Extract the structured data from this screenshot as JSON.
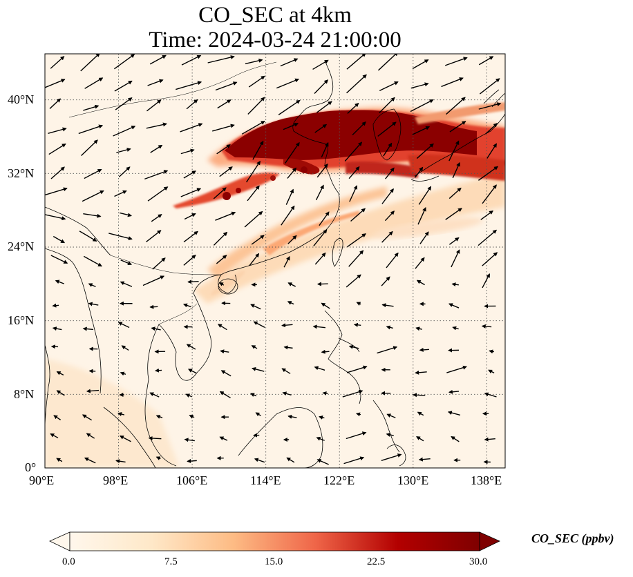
{
  "title_line1": "CO_SEC at 4km",
  "title_line2": "Time: 2024-03-24 21:00:00",
  "map": {
    "lon_range": [
      90,
      140
    ],
    "lat_range": [
      0,
      45
    ],
    "x_ticks": [
      "90°E",
      "98°E",
      "106°E",
      "114°E",
      "122°E",
      "130°E",
      "138°E"
    ],
    "y_ticks": [
      "0°",
      "8°N",
      "16°N",
      "24°N",
      "32°N",
      "40°N"
    ],
    "gridlines": "dotted",
    "wind_vectors": "shown"
  },
  "colorbar": {
    "label": "CO_SEC (ppbv)",
    "ticks": [
      "0.0",
      "7.5",
      "15.0",
      "22.5",
      "30.0"
    ],
    "range": [
      0,
      30
    ],
    "colormap": "OrRd",
    "extend": "both"
  },
  "colors": {
    "low": "#fff7ec",
    "mid": "#fdbb84",
    "high": "#d7301f",
    "max": "#7f0000"
  }
}
